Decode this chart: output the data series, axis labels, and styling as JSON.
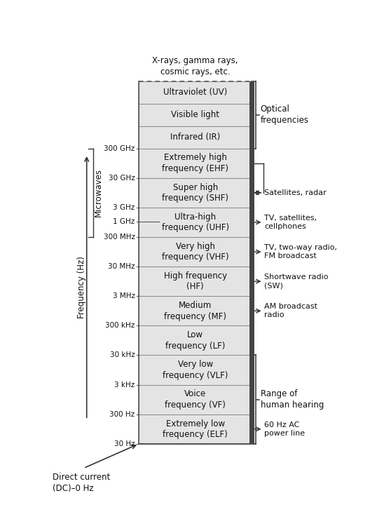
{
  "fig_width": 5.48,
  "fig_height": 7.5,
  "text_color": "#111111",
  "top_label": "X-rays, gamma rays,\ncosmic rays, etc.",
  "dc_label": "Direct current\n(DC)–0 Hz",
  "freq_axis_label": "Frequency (Hz)",
  "microwaves_label": "Microwaves",
  "bands": [
    "Ultraviolet (UV)",
    "Visible light",
    "Infrared (IR)",
    "Extremely high\nfrequency (EHF)",
    "Super high\nfrequency (SHF)",
    "Ultra-high\nfrequency (UHF)",
    "Very high\nfrequency (VHF)",
    "High frequency\n(HF)",
    "Medium\nfrequency (MF)",
    "Low\nfrequency (LF)",
    "Very low\nfrequency (VLF)",
    "Voice\nfrequency (VF)",
    "Extremely low\nfrequency (ELF)"
  ],
  "freq_tick_labels": [
    "300 GHz",
    "30 GHz",
    "3 GHz",
    "1 GHz",
    "300 MHz",
    "30 MHz",
    "3 MHz",
    "300 kHz",
    "30 kHz",
    "3 kHz",
    "300 Hz",
    "30 Hz"
  ],
  "right_annotations": [
    {
      "text": "Satellites, radar",
      "band": 4
    },
    {
      "text": "TV, satellites,\ncellphones",
      "band": 5
    },
    {
      "text": "TV, two-way radio,\nFM broadcast",
      "band": 6
    },
    {
      "text": "Shortwave radio\n(SW)",
      "band": 7
    },
    {
      "text": "AM broadcast\nradio",
      "band": 8
    },
    {
      "text": "60 Hz AC\npower line",
      "band": 12
    }
  ]
}
